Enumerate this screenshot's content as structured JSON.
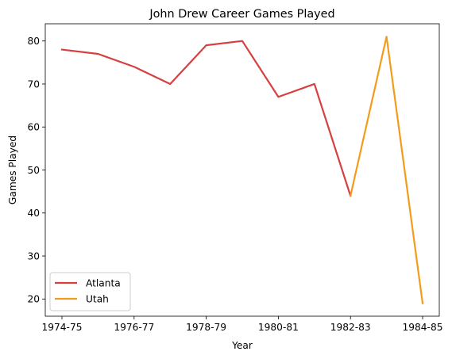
{
  "chart_data": {
    "type": "line",
    "title": "John Drew  Career Games Played",
    "xlabel": "Year",
    "ylabel": "Games Played",
    "x": [
      "1974-75",
      "1975-76",
      "1976-77",
      "1977-78",
      "1978-79",
      "1979-80",
      "1980-81",
      "1981-82",
      "1982-83",
      "1983-84",
      "1984-85"
    ],
    "x_tick_labels": [
      "1974-75",
      "1976-77",
      "1978-79",
      "1980-81",
      "1982-83",
      "1984-85"
    ],
    "y_ticks": [
      20,
      30,
      40,
      50,
      60,
      70,
      80
    ],
    "ylim": [
      16,
      84
    ],
    "grid": false,
    "legend_position": "lower-left",
    "series": [
      {
        "name": "Atlanta",
        "color": "#d64040",
        "points": [
          {
            "x": "1974-75",
            "y": 78
          },
          {
            "x": "1975-76",
            "y": 77
          },
          {
            "x": "1976-77",
            "y": 74
          },
          {
            "x": "1977-78",
            "y": 70
          },
          {
            "x": "1978-79",
            "y": 79
          },
          {
            "x": "1979-80",
            "y": 80
          },
          {
            "x": "1980-81",
            "y": 67
          },
          {
            "x": "1981-82",
            "y": 70
          },
          {
            "x": "1982-83",
            "y": 44
          }
        ]
      },
      {
        "name": "Utah",
        "color": "#f39c1b",
        "points": [
          {
            "x": "1982-83",
            "y": 44
          },
          {
            "x": "1983-84",
            "y": 81
          },
          {
            "x": "1984-85",
            "y": 19
          }
        ]
      }
    ]
  }
}
